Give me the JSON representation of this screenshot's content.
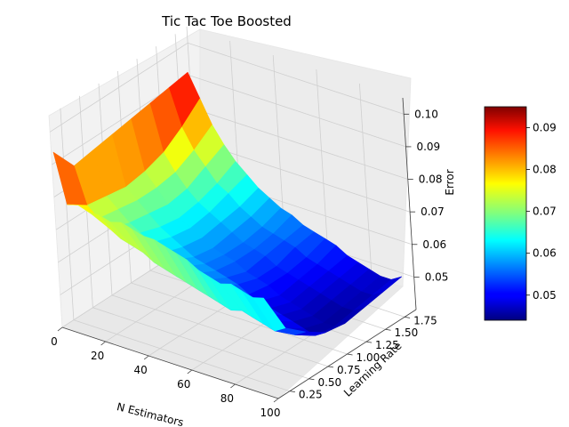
{
  "chart_data": {
    "type": "surface3d",
    "title": "Tic Tac Toe Boosted",
    "xlabel": "N Estimators",
    "ylabel": "Learning Rate",
    "zlabel": "Error",
    "xlim": [
      0,
      100
    ],
    "ylim": [
      0.1,
      1.9
    ],
    "zlim": [
      0.04,
      0.105
    ],
    "x_ticks": [
      "0",
      "20",
      "40",
      "60",
      "80",
      "100"
    ],
    "y_ticks": [
      "0.25",
      "0.50",
      "0.75",
      "1.00",
      "1.25",
      "1.50",
      "1.75"
    ],
    "z_ticks": [
      "0.05",
      "0.06",
      "0.07",
      "0.08",
      "0.09",
      "0.10"
    ],
    "colorbar": {
      "colormap": "jet",
      "range": [
        0.044,
        0.095
      ],
      "ticks": [
        "0.05",
        "0.06",
        "0.07",
        "0.08",
        "0.09"
      ]
    },
    "n_estimators": [
      1,
      6,
      11,
      16,
      21,
      26,
      31,
      36,
      41,
      46,
      51,
      56,
      61,
      66,
      71,
      76,
      81,
      86,
      91,
      96
    ],
    "learning_rates": [
      0.1,
      0.35,
      0.6,
      0.85,
      1.1,
      1.35,
      1.6,
      1.85
    ],
    "error": [
      [
        0.094,
        0.079,
        0.08,
        0.079,
        0.079,
        0.078,
        0.079,
        0.078,
        0.077,
        0.077,
        0.076,
        0.075,
        0.074,
        0.072,
        0.071,
        0.07,
        0.071,
        0.07,
        0.069,
        0.07
      ],
      [
        0.086,
        0.075,
        0.072,
        0.07,
        0.068,
        0.067,
        0.066,
        0.064,
        0.063,
        0.062,
        0.061,
        0.06,
        0.059,
        0.058,
        0.057,
        0.058,
        0.057,
        0.056,
        0.055,
        0.057
      ],
      [
        0.087,
        0.074,
        0.071,
        0.068,
        0.066,
        0.064,
        0.062,
        0.061,
        0.06,
        0.059,
        0.058,
        0.057,
        0.056,
        0.055,
        0.054,
        0.053,
        0.052,
        0.051,
        0.05,
        0.052
      ],
      [
        0.088,
        0.073,
        0.07,
        0.067,
        0.064,
        0.062,
        0.06,
        0.058,
        0.057,
        0.056,
        0.055,
        0.054,
        0.052,
        0.051,
        0.05,
        0.049,
        0.048,
        0.047,
        0.046,
        0.048
      ],
      [
        0.089,
        0.074,
        0.07,
        0.066,
        0.063,
        0.061,
        0.059,
        0.057,
        0.056,
        0.055,
        0.053,
        0.052,
        0.051,
        0.049,
        0.048,
        0.047,
        0.046,
        0.045,
        0.045,
        0.047
      ],
      [
        0.09,
        0.076,
        0.071,
        0.067,
        0.064,
        0.062,
        0.06,
        0.058,
        0.056,
        0.055,
        0.054,
        0.052,
        0.051,
        0.05,
        0.049,
        0.048,
        0.047,
        0.046,
        0.046,
        0.048
      ],
      [
        0.091,
        0.08,
        0.074,
        0.07,
        0.066,
        0.064,
        0.061,
        0.059,
        0.057,
        0.056,
        0.055,
        0.054,
        0.052,
        0.051,
        0.05,
        0.049,
        0.048,
        0.047,
        0.047,
        0.049
      ],
      [
        0.092,
        0.085,
        0.078,
        0.073,
        0.069,
        0.066,
        0.063,
        0.061,
        0.059,
        0.058,
        0.056,
        0.055,
        0.054,
        0.053,
        0.051,
        0.05,
        0.049,
        0.048,
        0.048,
        0.05
      ]
    ]
  }
}
